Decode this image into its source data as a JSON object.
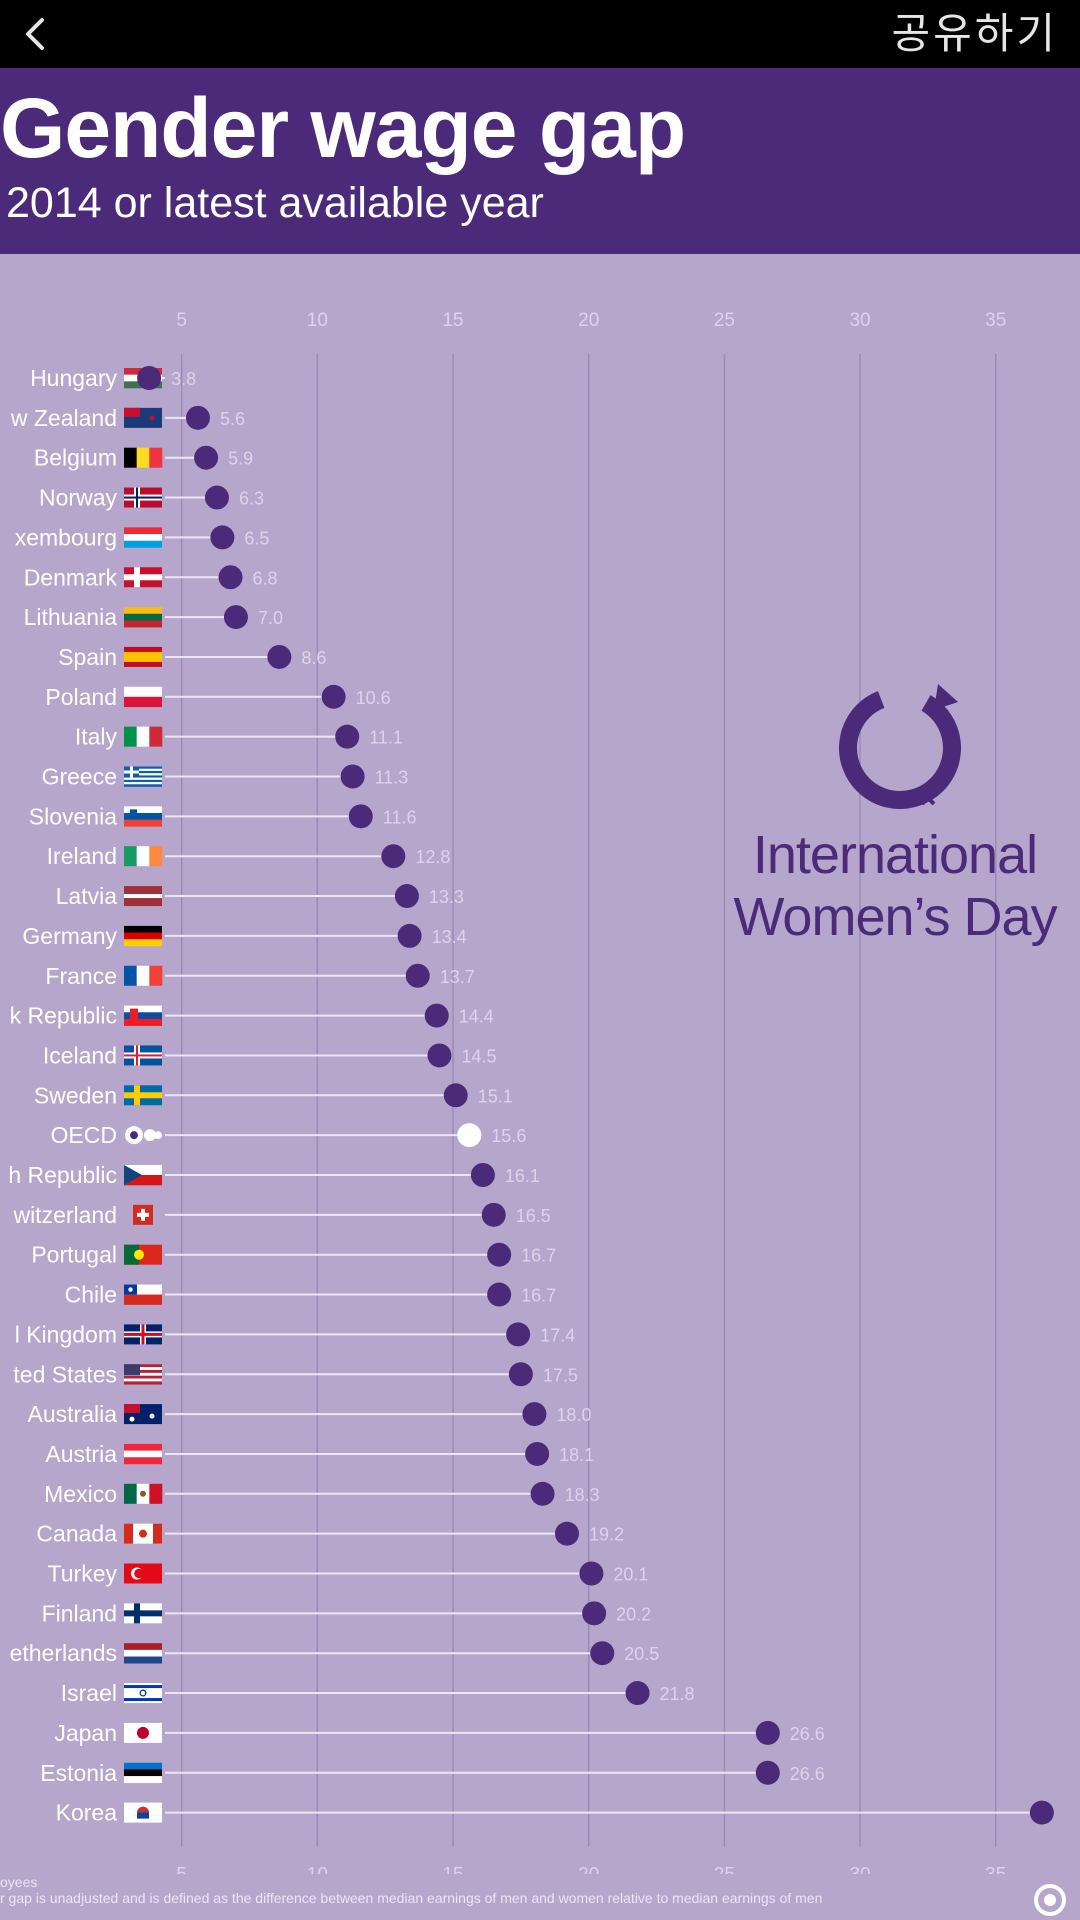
{
  "topbar": {
    "back_icon": "chevron-left-icon",
    "share_label": "공유하기"
  },
  "header": {
    "title": "Gender wage gap",
    "subtitle": "2014 or latest available year"
  },
  "logo": {
    "icon": "venus-mars-circle-icon",
    "line1": "International",
    "line2": "Women’s Day"
  },
  "footnote": {
    "line1": "oyees",
    "line2": "r gap is unadjusted and is defined as the difference between median earnings of men and women relative to median earnings of men"
  },
  "colors": {
    "header_bg": "#4b2a7a",
    "chart_bg": "#b6a6cc",
    "dot": "#4b2a7a",
    "oecd_dot": "#ffffff"
  },
  "chart_data": {
    "type": "scatter",
    "style": "dot-plot",
    "title": "Gender wage gap",
    "subtitle": "2014 or latest available year",
    "xlim": [
      0,
      37
    ],
    "xticks": [
      5,
      10,
      15,
      20,
      25,
      30,
      35
    ],
    "grid": true,
    "highlight": "OECD",
    "categories": [
      "Hungary",
      "w Zealand",
      "Belgium",
      "Norway",
      "xembourg",
      "Denmark",
      "Lithuania",
      "Spain",
      "Poland",
      "Italy",
      "Greece",
      "Slovenia",
      "Ireland",
      "Latvia",
      "Germany",
      "France",
      "k Republic",
      "Iceland",
      "Sweden",
      "OECD",
      "h Republic",
      "witzerland",
      "Portugal",
      "Chile",
      "l Kingdom",
      "ted States",
      "Australia",
      "Austria",
      "Mexico",
      "Canada",
      "Turkey",
      "Finland",
      "etherlands",
      "Israel",
      "Japan",
      "Estonia",
      "Korea"
    ],
    "values": [
      3.8,
      5.6,
      5.9,
      6.3,
      6.5,
      6.8,
      7.0,
      8.6,
      10.6,
      11.1,
      11.3,
      11.6,
      12.8,
      13.3,
      13.4,
      13.7,
      14.4,
      14.5,
      15.1,
      15.6,
      16.1,
      16.5,
      16.7,
      16.7,
      17.4,
      17.5,
      18.0,
      18.1,
      18.3,
      19.2,
      20.1,
      20.2,
      20.5,
      21.8,
      26.6,
      26.6,
      36.7
    ],
    "value_labels": [
      "3.8",
      "5.6",
      "5.9",
      "6.3",
      "6.5",
      "6.8",
      "7.0",
      "8.6",
      "10.6",
      "11.1",
      "11.3",
      "11.6",
      "12.8",
      "13.3",
      "13.4",
      "13.7",
      "14.4",
      "14.5",
      "15.1",
      "15.6",
      "16.1",
      "16.5",
      "16.7",
      "16.7",
      "17.4",
      "17.5",
      "18.0",
      "18.1",
      "18.3",
      "19.2",
      "20.1",
      "20.2",
      "20.5",
      "21.8",
      "26.6",
      "26.6",
      ""
    ],
    "flags": [
      "HU",
      "NZ",
      "BE",
      "NO",
      "LU",
      "DK",
      "LT",
      "ES",
      "PL",
      "IT",
      "GR",
      "SI",
      "IE",
      "LV",
      "DE",
      "FR",
      "SK",
      "IS",
      "SE",
      "OECD",
      "CZ",
      "CH",
      "PT",
      "CL",
      "GB",
      "US",
      "AU",
      "AT",
      "MX",
      "CA",
      "TR",
      "FI",
      "NL",
      "IL",
      "JP",
      "EE",
      "KR"
    ]
  }
}
